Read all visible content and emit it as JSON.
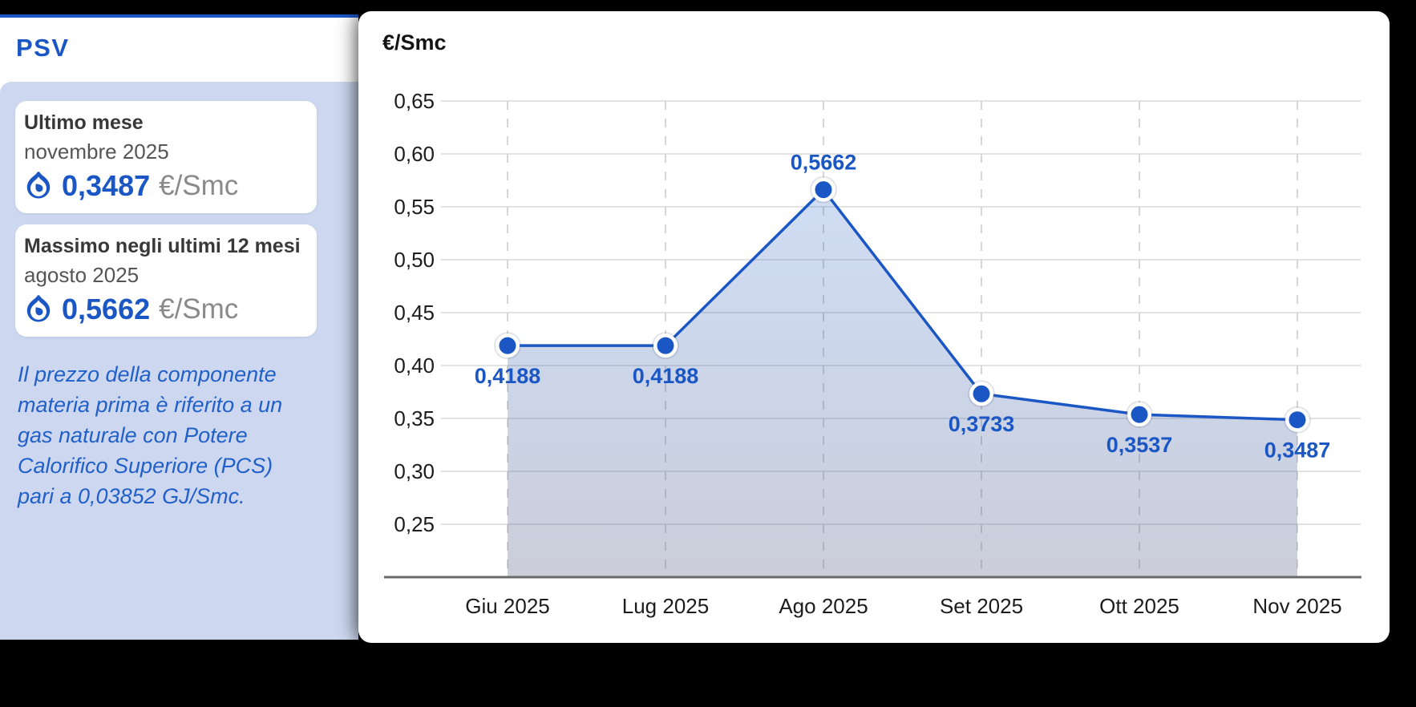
{
  "sidebar": {
    "title": "PSV",
    "accent_color": "#1a56c4",
    "panel_color": "#cdd8f0",
    "cards": [
      {
        "title": "Ultimo mese",
        "date": "novembre 2025",
        "value": "0,3487",
        "unit": "€/Smc",
        "icon": "flame-icon"
      },
      {
        "title": "Massimo negli ultimi 12 mesi",
        "date": "agosto 2025",
        "value": "0,5662",
        "unit": "€/Smc",
        "icon": "flame-icon"
      }
    ],
    "note_lines": [
      "Il prezzo della componente",
      "materia prima è riferito a un",
      "gas naturale con Potere",
      "Calorifico Superiore (PCS)",
      "pari a 0,03852 GJ/Smc."
    ]
  },
  "chart_data": {
    "type": "line",
    "title": "",
    "unit_label": "€/Smc",
    "categories": [
      "Giu 2025",
      "Lug 2025",
      "Ago 2025",
      "Set 2025",
      "Ott 2025",
      "Nov 2025"
    ],
    "values": [
      0.4188,
      0.4188,
      0.5662,
      0.3733,
      0.3537,
      0.3487
    ],
    "value_labels": [
      "0,4188",
      "0,4188",
      "0,5662",
      "0,3733",
      "0,3537",
      "0,3487"
    ],
    "y_ticks": [
      0.25,
      0.3,
      0.35,
      0.4,
      0.45,
      0.5,
      0.55,
      0.6,
      0.65
    ],
    "y_tick_labels": [
      "0,25",
      "0,30",
      "0,35",
      "0,40",
      "0,45",
      "0,50",
      "0,55",
      "0,60",
      "0,65"
    ],
    "ylim": [
      0.2,
      0.65
    ],
    "grid": {
      "horizontal": "solid",
      "vertical": "dashed"
    },
    "legend": "none",
    "area_fill": true,
    "line_color": "#1a56c4",
    "marker": "circle"
  }
}
